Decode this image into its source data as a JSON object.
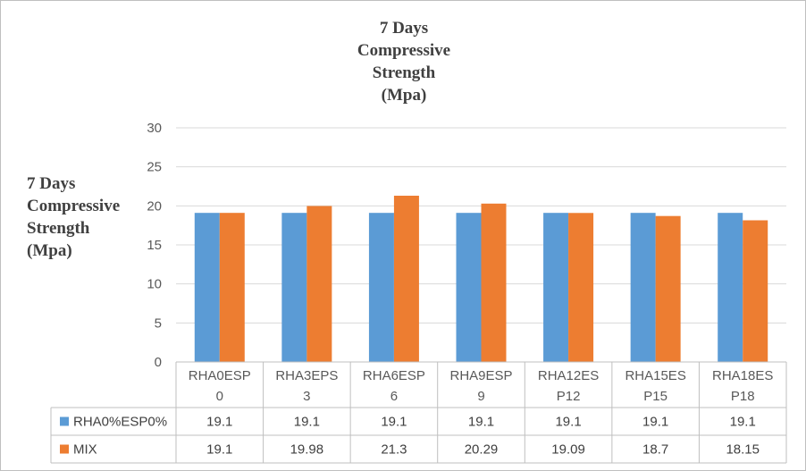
{
  "chart_data": {
    "type": "bar",
    "title": "7 Days Compressive Strength (Mpa)",
    "title_lines": [
      "7 Days",
      "Compressive",
      "Strength",
      "(Mpa)"
    ],
    "ylabel": "7 Days Compressive Strength (Mpa)",
    "ylabel_lines": [
      "7 Days",
      "Compressive",
      "Strength",
      "(Mpa)"
    ],
    "xlabel": "",
    "ylim": [
      0,
      30
    ],
    "yticks": [
      0,
      5,
      10,
      15,
      20,
      25,
      30
    ],
    "grid": true,
    "legend": "data-table",
    "categories": [
      "RHA0ESP0",
      "RHA3EPS3",
      "RHA6ESP6",
      "RHA9ESP9",
      "RHA12ESP12",
      "RHA15ESP15",
      "RHA18ESP18"
    ],
    "category_lines": [
      [
        "RHA0ESP",
        "0"
      ],
      [
        "RHA3EPS",
        "3"
      ],
      [
        "RHA6ESP",
        "6"
      ],
      [
        "RHA9ESP",
        "9"
      ],
      [
        "RHA12ES",
        "P12"
      ],
      [
        "RHA15ES",
        "P15"
      ],
      [
        "RHA18ES",
        "P18"
      ]
    ],
    "series": [
      {
        "name": "RHA0%ESP0%",
        "color": "#5b9bd5",
        "values": [
          19.1,
          19.1,
          19.1,
          19.1,
          19.1,
          19.1,
          19.1
        ],
        "labels": [
          "19.1",
          "19.1",
          "19.1",
          "19.1",
          "19.1",
          "19.1",
          "19.1"
        ]
      },
      {
        "name": "MIX",
        "color": "#ed7d31",
        "values": [
          19.1,
          19.98,
          21.3,
          20.29,
          19.09,
          18.7,
          18.15
        ],
        "labels": [
          "19.1",
          "19.98",
          "21.3",
          "20.29",
          "19.09",
          "18.7",
          "18.15"
        ]
      }
    ]
  }
}
